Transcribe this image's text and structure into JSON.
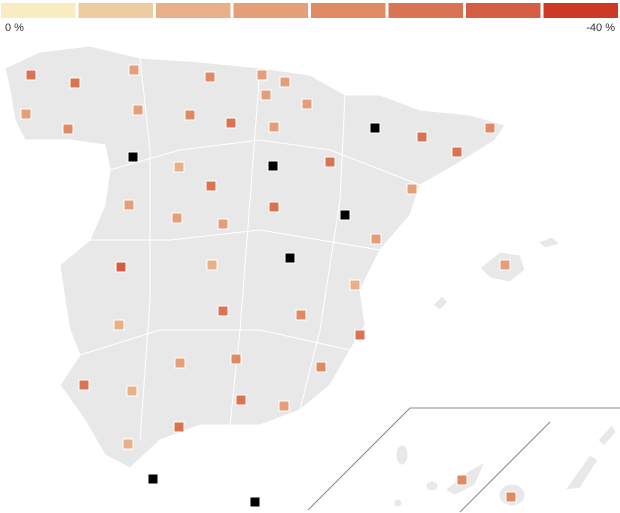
{
  "legend": {
    "colors": [
      "#f8ecc0",
      "#eecba0",
      "#e8b088",
      "#e59e78",
      "#e08a64",
      "#da7254",
      "#d45e44",
      "#cc3a26"
    ],
    "min_label": "0 %",
    "max_label": "-40 %"
  },
  "markers": [
    {
      "bin": 5
    },
    {
      "bin": 5
    },
    {
      "bin": 3
    },
    {
      "bin": 4
    },
    {
      "bin": 3
    },
    {
      "bin": 3
    },
    {
      "bin": 3
    },
    {
      "bin": 3
    },
    {
      "bin": 3
    },
    {
      "bin": 4
    },
    {
      "bin": 3
    },
    {
      "bin": 4
    },
    {
      "bin": 5
    },
    {
      "bin": 3
    },
    {
      "bin": null
    },
    {
      "bin": 5
    },
    {
      "bin": 4
    },
    {
      "bin": null
    },
    {
      "bin": 5
    },
    {
      "bin": 2
    },
    {
      "bin": null
    },
    {
      "bin": 5
    },
    {
      "bin": 5
    },
    {
      "bin": 3
    },
    {
      "bin": 3
    },
    {
      "bin": 3
    },
    {
      "bin": 5
    },
    {
      "bin": 3
    },
    {
      "bin": null
    },
    {
      "bin": 3
    },
    {
      "bin": 6
    },
    {
      "bin": 2
    },
    {
      "bin": null
    },
    {
      "bin": 2
    },
    {
      "bin": 3
    },
    {
      "bin": 2
    },
    {
      "bin": 5
    },
    {
      "bin": 4
    },
    {
      "bin": 5
    },
    {
      "bin": 3
    },
    {
      "bin": 4
    },
    {
      "bin": 4
    },
    {
      "bin": 5
    },
    {
      "bin": 2
    },
    {
      "bin": 5
    },
    {
      "bin": 3
    },
    {
      "bin": 5
    },
    {
      "bin": 2
    },
    {
      "bin": null
    },
    {
      "bin": null
    },
    {
      "bin": 4
    },
    {
      "bin": 4
    }
  ]
}
